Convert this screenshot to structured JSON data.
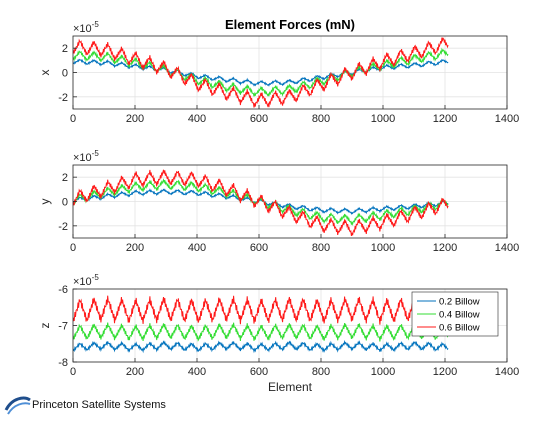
{
  "figure": {
    "title": "Element Forces (mN)",
    "logo_text": "Princeton Satellite Systems"
  },
  "chart_data": [
    {
      "type": "line",
      "ylabel": "x",
      "xlabel": "",
      "exponent": "×10",
      "exponent_power": "-5",
      "xlim": [
        0,
        1400
      ],
      "ylim": [
        -3,
        3
      ],
      "xticks": [
        0,
        200,
        400,
        600,
        800,
        1000,
        1200,
        1400
      ],
      "yticks": [
        -2,
        0,
        2
      ],
      "grid": true,
      "series": [
        {
          "name": "0.2 Billow",
          "color": "#0072BD",
          "x": [
            0,
            100,
            200,
            300,
            400,
            500,
            600,
            700,
            800,
            900,
            1000,
            1100,
            1210
          ],
          "y": [
            0.9,
            0.8,
            0.5,
            0.2,
            -0.3,
            -0.6,
            -0.9,
            -0.8,
            -0.4,
            0,
            0.4,
            0.6,
            0.9
          ]
        },
        {
          "name": "0.4 Billow",
          "color": "#33DD33",
          "x": [
            0,
            100,
            200,
            300,
            400,
            500,
            600,
            700,
            800,
            900,
            1000,
            1100,
            1210
          ],
          "y": [
            1.4,
            1.3,
            0.8,
            0.2,
            -0.6,
            -1.2,
            -1.6,
            -1.4,
            -0.7,
            0,
            0.6,
            1.1,
            1.6
          ]
        },
        {
          "name": "0.6 Billow",
          "color": "#FF1A1A",
          "x": [
            0,
            100,
            200,
            300,
            400,
            500,
            600,
            700,
            800,
            900,
            1000,
            1100,
            1210
          ],
          "y": [
            2.1,
            1.9,
            1.1,
            0.3,
            -0.9,
            -1.7,
            -2.3,
            -2.0,
            -1.0,
            0,
            0.9,
            1.6,
            2.4
          ]
        }
      ]
    },
    {
      "type": "line",
      "ylabel": "y",
      "xlabel": "",
      "exponent": "×10",
      "exponent_power": "-5",
      "xlim": [
        0,
        1400
      ],
      "ylim": [
        -3,
        3
      ],
      "xticks": [
        0,
        200,
        400,
        600,
        800,
        1000,
        1200,
        1400
      ],
      "yticks": [
        -2,
        0,
        2
      ],
      "grid": true,
      "series": [
        {
          "name": "0.2 Billow",
          "color": "#0072BD",
          "x": [
            0,
            100,
            200,
            300,
            400,
            500,
            600,
            700,
            800,
            900,
            1000,
            1100,
            1210
          ],
          "y": [
            0.1,
            0.4,
            0.7,
            0.8,
            0.7,
            0.4,
            0,
            -0.4,
            -0.7,
            -0.8,
            -0.6,
            -0.4,
            -0.1
          ]
        },
        {
          "name": "0.4 Billow",
          "color": "#33DD33",
          "x": [
            0,
            100,
            200,
            300,
            400,
            500,
            600,
            700,
            800,
            900,
            1000,
            1100,
            1210
          ],
          "y": [
            0.1,
            0.7,
            1.2,
            1.4,
            1.2,
            0.7,
            0,
            -0.7,
            -1.3,
            -1.5,
            -1.1,
            -0.7,
            -0.1
          ]
        },
        {
          "name": "0.6 Billow",
          "color": "#FF1A1A",
          "x": [
            0,
            100,
            200,
            300,
            400,
            500,
            600,
            700,
            800,
            900,
            1000,
            1100,
            1210
          ],
          "y": [
            0.2,
            1.0,
            1.8,
            2.0,
            1.8,
            1.0,
            0,
            -1.0,
            -1.9,
            -2.2,
            -1.7,
            -1.0,
            -0.2
          ]
        }
      ]
    },
    {
      "type": "line",
      "ylabel": "z",
      "xlabel": "Element",
      "exponent": "×10",
      "exponent_power": "-5",
      "xlim": [
        0,
        1400
      ],
      "ylim": [
        -8,
        -6
      ],
      "xticks": [
        0,
        200,
        400,
        600,
        800,
        1000,
        1200,
        1400
      ],
      "yticks": [
        -8,
        -7,
        -6
      ],
      "grid": true,
      "legend_position": "top-right",
      "series": [
        {
          "name": "0.2 Billow",
          "color": "#0072BD",
          "x": [
            0,
            100,
            200,
            300,
            400,
            500,
            600,
            700,
            800,
            900,
            1000,
            1100,
            1210
          ],
          "y": [
            -7.6,
            -7.55,
            -7.6,
            -7.55,
            -7.6,
            -7.55,
            -7.6,
            -7.55,
            -7.6,
            -7.55,
            -7.6,
            -7.55,
            -7.6
          ]
        },
        {
          "name": "0.4 Billow",
          "color": "#33DD33",
          "x": [
            0,
            100,
            200,
            300,
            400,
            500,
            600,
            700,
            800,
            900,
            1000,
            1100,
            1210
          ],
          "y": [
            -7.2,
            -7.15,
            -7.2,
            -7.15,
            -7.2,
            -7.15,
            -7.2,
            -7.15,
            -7.2,
            -7.15,
            -7.2,
            -7.15,
            -7.2
          ]
        },
        {
          "name": "0.6 Billow",
          "color": "#FF1A1A",
          "x": [
            0,
            100,
            200,
            300,
            400,
            500,
            600,
            700,
            800,
            900,
            1000,
            1100,
            1210
          ],
          "y": [
            -6.6,
            -6.55,
            -6.6,
            -6.55,
            -6.6,
            -6.55,
            -6.6,
            -6.55,
            -6.6,
            -6.55,
            -6.6,
            -6.55,
            -6.6
          ]
        }
      ]
    }
  ]
}
